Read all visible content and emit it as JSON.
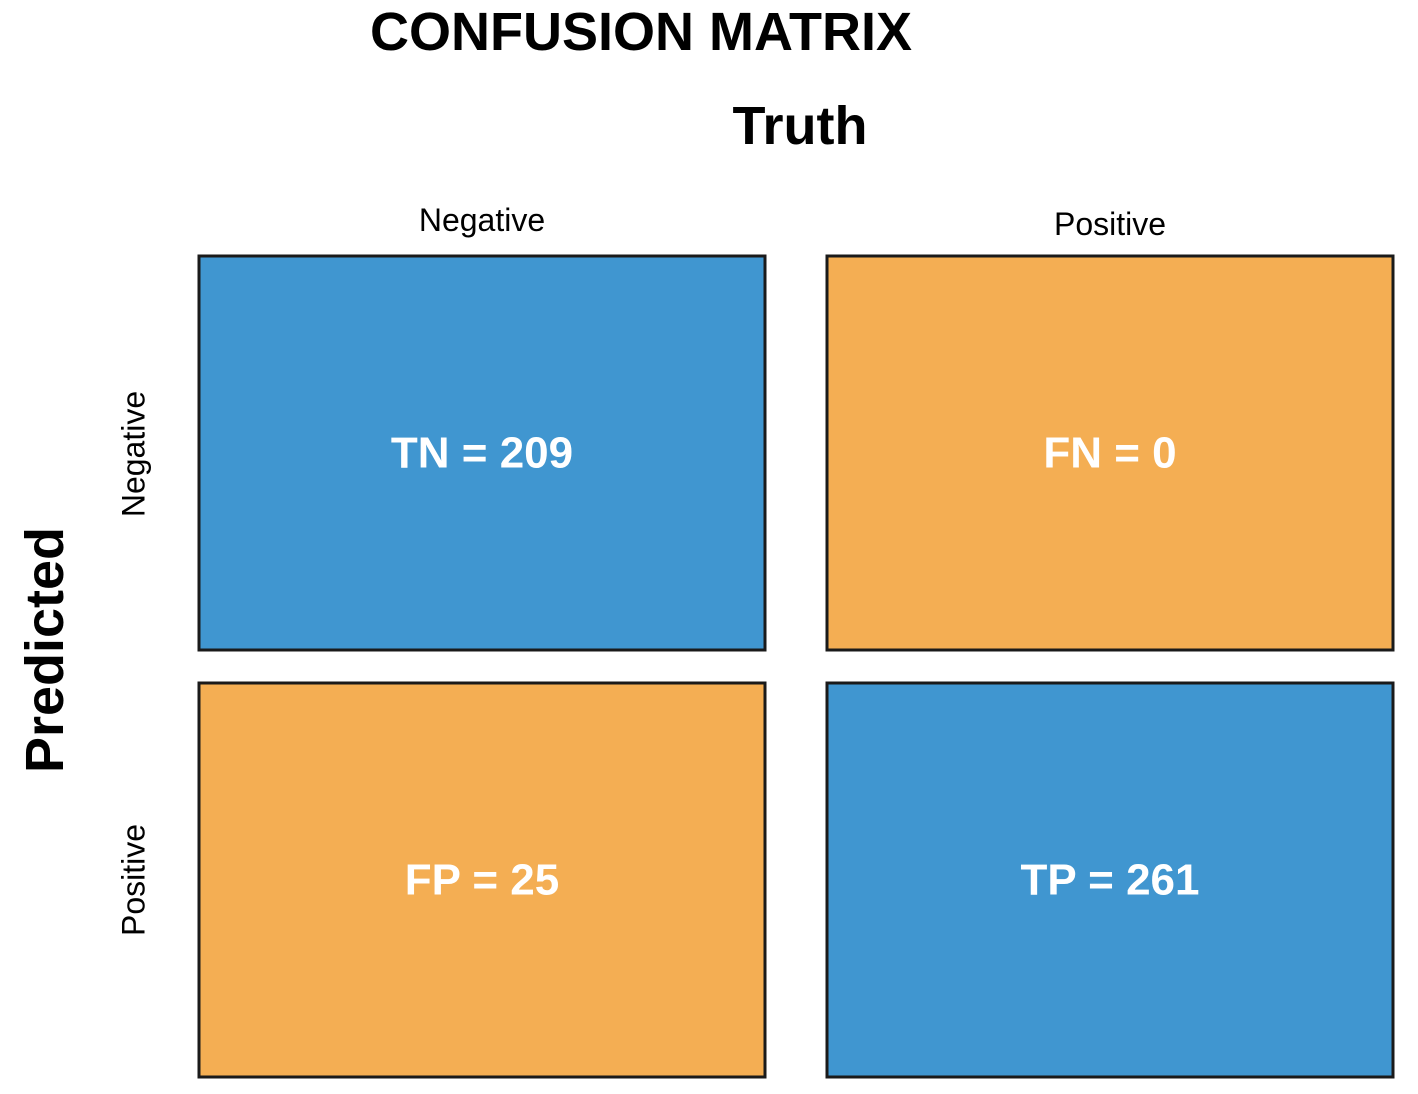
{
  "chart_data": {
    "type": "heatmap",
    "title": "CONFUSION MATRIX",
    "xlabel": "Truth",
    "ylabel": "Predicted",
    "x_categories": [
      "Negative",
      "Positive"
    ],
    "y_categories": [
      "Negative",
      "Positive"
    ],
    "cells": [
      {
        "row": 0,
        "col": 0,
        "label": "TN = 209",
        "abbr": "TN",
        "value": 209,
        "color": "#4096D0"
      },
      {
        "row": 0,
        "col": 1,
        "label": "FN = 0",
        "abbr": "FN",
        "value": 0,
        "color": "#F4AE53"
      },
      {
        "row": 1,
        "col": 0,
        "label": "FP = 25",
        "abbr": "FP",
        "value": 25,
        "color": "#F4AE53"
      },
      {
        "row": 1,
        "col": 1,
        "label": "TP = 261",
        "abbr": "TP",
        "value": 261,
        "color": "#4096D0"
      }
    ],
    "colors": {
      "correct": "#4096D0",
      "incorrect": "#F4AE53",
      "border": "#1a1a1a",
      "cell_text": "#ffffff"
    }
  }
}
